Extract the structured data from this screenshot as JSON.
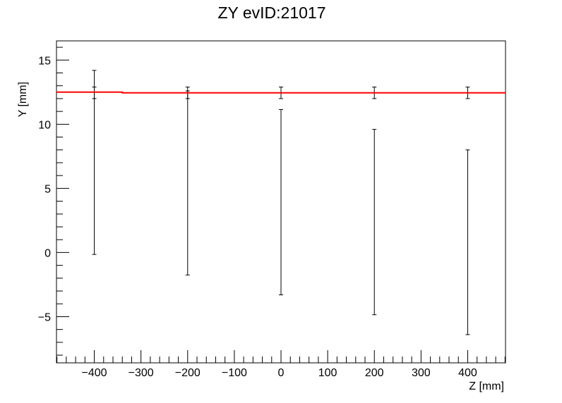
{
  "chart_data": {
    "type": "scatter",
    "title": "ZY evID:21017",
    "xlabel": "Z [mm]",
    "ylabel": "Y [mm]",
    "xlim": [
      -481,
      481
    ],
    "ylim": [
      -8.6,
      16.5
    ],
    "grid": false,
    "x_major_ticks": [
      -400,
      -300,
      -200,
      -100,
      0,
      100,
      200,
      300,
      400
    ],
    "x_tick_labels": [
      "−400",
      "−300",
      "−200",
      "−100",
      "0",
      "100",
      "200",
      "300",
      "400"
    ],
    "y_major_ticks": [
      -5,
      0,
      5,
      10,
      15
    ],
    "y_tick_labels": [
      "−5",
      "0",
      "5",
      "10",
      "15"
    ],
    "series": [
      {
        "style": "error-bars",
        "color": "#000000",
        "points": [
          {
            "x": -400,
            "y": 12.5,
            "y_low": 12.0,
            "y_high": 12.9
          },
          {
            "x": -200,
            "y": 12.5,
            "y_low": 12.0,
            "y_high": 12.9
          },
          {
            "x": 0,
            "y": 12.5,
            "y_low": 12.0,
            "y_high": 12.9
          },
          {
            "x": 200,
            "y": 12.5,
            "y_low": 12.0,
            "y_high": 12.9
          },
          {
            "x": 400,
            "y": 12.5,
            "y_low": 12.0,
            "y_high": 12.9
          }
        ]
      },
      {
        "style": "error-bars",
        "color": "#000000",
        "points": [
          {
            "x": -400,
            "y": 7.0,
            "y_low": -0.15,
            "y_high": 14.2
          },
          {
            "x": -200,
            "y": 5.45,
            "y_low": -1.75,
            "y_high": 12.6
          },
          {
            "x": 0,
            "y": 3.9,
            "y_low": -3.3,
            "y_high": 11.15
          },
          {
            "x": 200,
            "y": 2.35,
            "y_low": -4.85,
            "y_high": 9.6
          },
          {
            "x": 400,
            "y": 0.8,
            "y_low": -6.4,
            "y_high": 8.0
          }
        ]
      },
      {
        "style": "line",
        "color": "#ff0000",
        "x": [
          -481,
          -340,
          -340,
          481
        ],
        "y": [
          12.5,
          12.5,
          12.45,
          12.45
        ]
      }
    ]
  }
}
